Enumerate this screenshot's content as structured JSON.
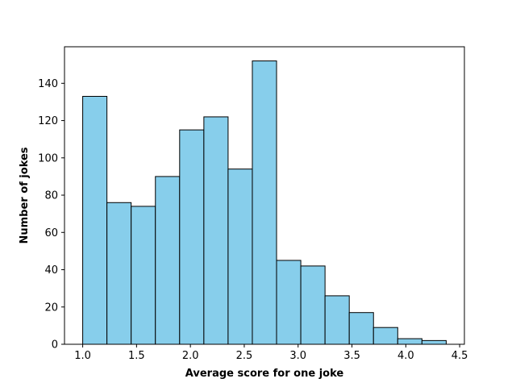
{
  "chart_data": {
    "type": "bar",
    "subtype": "histogram",
    "title": "",
    "xlabel": "Average score for one joke",
    "ylabel": "Number of jokes",
    "bin_width": 0.225,
    "bins": [
      {
        "x0": 1.0,
        "x1": 1.225,
        "count": 133
      },
      {
        "x0": 1.225,
        "x1": 1.45,
        "count": 76
      },
      {
        "x0": 1.45,
        "x1": 1.675,
        "count": 74
      },
      {
        "x0": 1.675,
        "x1": 1.9,
        "count": 90
      },
      {
        "x0": 1.9,
        "x1": 2.125,
        "count": 115
      },
      {
        "x0": 2.125,
        "x1": 2.35,
        "count": 122
      },
      {
        "x0": 2.35,
        "x1": 2.575,
        "count": 94
      },
      {
        "x0": 2.575,
        "x1": 2.8,
        "count": 152
      },
      {
        "x0": 2.8,
        "x1": 3.025,
        "count": 45
      },
      {
        "x0": 3.025,
        "x1": 3.25,
        "count": 42
      },
      {
        "x0": 3.25,
        "x1": 3.475,
        "count": 26
      },
      {
        "x0": 3.475,
        "x1": 3.7,
        "count": 17
      },
      {
        "x0": 3.7,
        "x1": 3.925,
        "count": 9
      },
      {
        "x0": 3.925,
        "x1": 4.15,
        "count": 3
      },
      {
        "x0": 4.15,
        "x1": 4.375,
        "count": 2
      }
    ],
    "xlim": [
      0.831,
      4.544
    ],
    "ylim": [
      0,
      159.6
    ],
    "x_ticks": [
      1.0,
      1.5,
      2.0,
      2.5,
      3.0,
      3.5,
      4.0,
      4.5
    ],
    "x_tick_labels": [
      "1.0",
      "1.5",
      "2.0",
      "2.5",
      "3.0",
      "3.5",
      "4.0",
      "4.5"
    ],
    "y_ticks": [
      0,
      20,
      40,
      60,
      80,
      100,
      120,
      140
    ],
    "y_tick_labels": [
      "0",
      "20",
      "40",
      "60",
      "80",
      "100",
      "120",
      "140"
    ],
    "grid": false,
    "legend": "none",
    "colors": {
      "bar_fill": "#87ceeb",
      "bar_edge": "#000000",
      "axes": "#000000",
      "background": "#ffffff"
    }
  }
}
